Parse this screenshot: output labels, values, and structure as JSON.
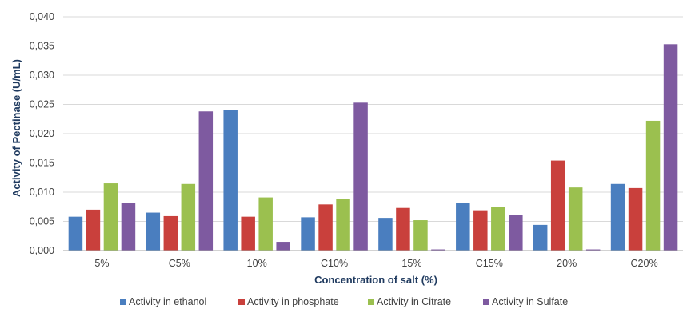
{
  "chart_data": {
    "type": "bar",
    "title": "",
    "xlabel": "Concentration of salt (%)",
    "ylabel": "Activity of Pectinase (U/mL)",
    "ylim": [
      0,
      0.04
    ],
    "yticks": [
      "0,000",
      "0,005",
      "0,010",
      "0,015",
      "0,020",
      "0,025",
      "0,030",
      "0,035",
      "0,040"
    ],
    "ytick_values": [
      0,
      0.005,
      0.01,
      0.015,
      0.02,
      0.025,
      0.03,
      0.035,
      0.04
    ],
    "grid": true,
    "legend_position": "bottom",
    "categories": [
      "5%",
      "C5%",
      "10%",
      "C10%",
      "15%",
      "C15%",
      "20%",
      "C20%"
    ],
    "series": [
      {
        "name": "Activity in ethanol",
        "color": "#4a7ebf",
        "values": [
          0.0058,
          0.0065,
          0.0241,
          0.0057,
          0.0056,
          0.0082,
          0.0044,
          0.0114
        ]
      },
      {
        "name": "Activity in phosphate",
        "color": "#c9403c",
        "values": [
          0.007,
          0.0059,
          0.0058,
          0.0079,
          0.0073,
          0.0069,
          0.0154,
          0.0107
        ]
      },
      {
        "name": "Activity in Citrate",
        "color": "#9bc04f",
        "values": [
          0.0115,
          0.0114,
          0.0091,
          0.0088,
          0.0052,
          0.0074,
          0.0108,
          0.0222
        ]
      },
      {
        "name": "Activity in Sulfate",
        "color": "#7e5aa0",
        "values": [
          0.0082,
          0.0238,
          0.0015,
          0.0253,
          0.0002,
          0.0061,
          0.0002,
          0.0353
        ]
      }
    ]
  }
}
